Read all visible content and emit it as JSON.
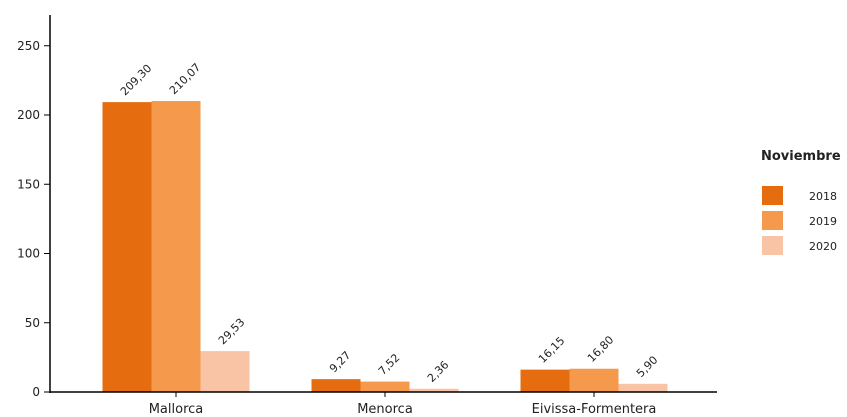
{
  "chart_data": {
    "type": "bar",
    "title": "",
    "xlabel": "",
    "ylabel": "",
    "ylim": [
      0,
      250
    ],
    "yticks": [
      "0",
      "50",
      "100",
      "150",
      "200",
      "250"
    ],
    "categories": [
      "Mallorca",
      "Menorca",
      "Eivissa-Formentera"
    ],
    "series": [
      {
        "name": "2018",
        "color": "#e56c0f",
        "values": [
          209.3,
          9.27,
          16.15
        ],
        "labels": [
          "209,30",
          "9,27",
          "16,15"
        ]
      },
      {
        "name": "2019",
        "color": "#f59a4d",
        "values": [
          210.07,
          7.52,
          16.8
        ],
        "labels": [
          "210,07",
          "7,52",
          "16,80"
        ]
      },
      {
        "name": "2020",
        "color": "#f9c3a5",
        "values": [
          29.53,
          2.36,
          5.9
        ],
        "labels": [
          "29,53",
          "2,36",
          "5,90"
        ]
      }
    ],
    "legend": {
      "title": "Noviembre",
      "position": "right"
    },
    "grid": false
  }
}
